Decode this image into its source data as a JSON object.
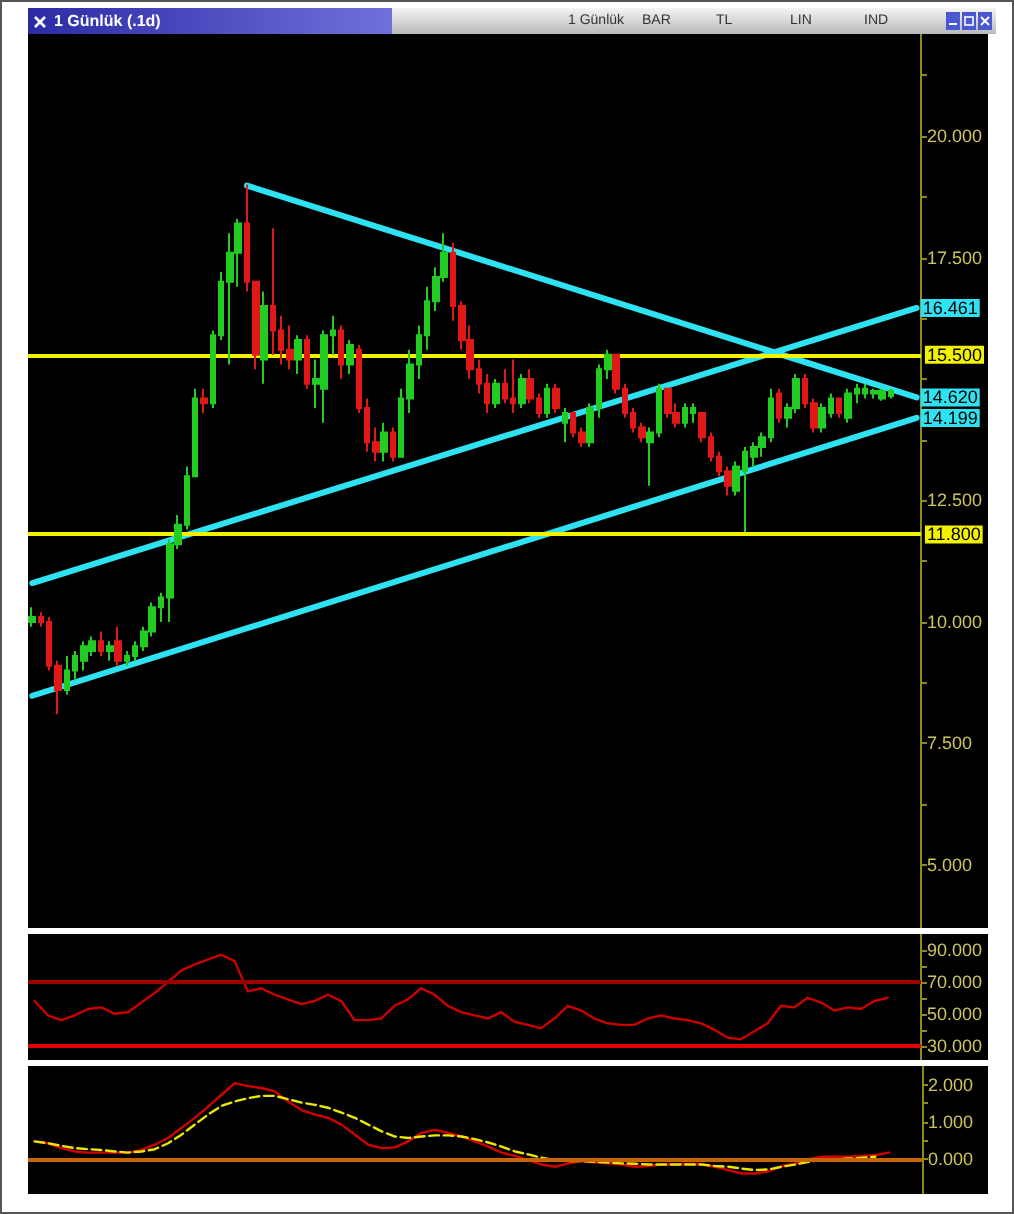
{
  "chart_data": [
    {
      "type": "candlestick",
      "title": "1 Günlük (.1d)",
      "annotations": [
        "1 Günlük",
        "BAR",
        "TL",
        "LIN",
        "IND"
      ],
      "categories": [
        null,
        null,
        null,
        null,
        null,
        null,
        null,
        null,
        null,
        null,
        null,
        null,
        null,
        null,
        null,
        null,
        null,
        null,
        null,
        null,
        null,
        null,
        null,
        null,
        null,
        null,
        null,
        null,
        null,
        null,
        null,
        null,
        null,
        null,
        null,
        null,
        null,
        null,
        null,
        null,
        null,
        null,
        null,
        null,
        null,
        null,
        null,
        null,
        null,
        null,
        null,
        null,
        null,
        null,
        null,
        null,
        null,
        null,
        null,
        null,
        null,
        null,
        null,
        null,
        null,
        null,
        null,
        null,
        null,
        null,
        null,
        null,
        null,
        null,
        null,
        null,
        null,
        null,
        null,
        null,
        null,
        null,
        null,
        null,
        null,
        null,
        null,
        null,
        null,
        null,
        null,
        null,
        null,
        null,
        null,
        null,
        null,
        null,
        null,
        null,
        null,
        null,
        null,
        null
      ],
      "ohlc": [
        [
          10.0,
          10.3,
          9.9,
          10.1
        ],
        [
          10.1,
          10.2,
          9.9,
          10.0
        ],
        [
          10.0,
          10.1,
          9.0,
          9.1
        ],
        [
          9.1,
          9.2,
          8.1,
          8.6
        ],
        [
          8.6,
          9.3,
          8.5,
          9.0
        ],
        [
          9.0,
          9.4,
          8.8,
          9.3
        ],
        [
          9.2,
          9.6,
          9.0,
          9.5
        ],
        [
          9.4,
          9.7,
          9.3,
          9.6
        ],
        [
          9.6,
          9.8,
          9.3,
          9.4
        ],
        [
          9.4,
          9.6,
          9.2,
          9.5
        ],
        [
          9.6,
          9.9,
          9.1,
          9.2
        ],
        [
          9.2,
          9.4,
          9.1,
          9.3
        ],
        [
          9.3,
          9.6,
          9.2,
          9.5
        ],
        [
          9.5,
          9.9,
          9.4,
          9.8
        ],
        [
          9.8,
          10.4,
          9.7,
          10.3
        ],
        [
          10.3,
          10.6,
          10.0,
          10.5
        ],
        [
          10.5,
          11.7,
          10.0,
          11.6
        ],
        [
          11.6,
          12.2,
          11.5,
          12.0
        ],
        [
          12.0,
          13.2,
          11.9,
          13.0
        ],
        [
          13.0,
          14.8,
          13.0,
          14.6
        ],
        [
          14.6,
          14.8,
          14.3,
          14.5
        ],
        [
          14.5,
          16.0,
          14.4,
          15.9
        ],
        [
          15.9,
          17.2,
          15.8,
          17.0
        ],
        [
          17.0,
          18.0,
          15.3,
          17.6
        ],
        [
          17.6,
          18.3,
          16.9,
          18.2
        ],
        [
          18.2,
          19.0,
          16.8,
          17.0
        ],
        [
          17.0,
          17.0,
          15.2,
          15.5
        ],
        [
          15.4,
          16.8,
          14.9,
          16.5
        ],
        [
          16.5,
          18.1,
          15.5,
          16.0
        ],
        [
          16.0,
          16.3,
          15.3,
          15.6
        ],
        [
          15.6,
          16.1,
          15.2,
          15.4
        ],
        [
          15.4,
          15.9,
          15.1,
          15.8
        ],
        [
          15.8,
          15.9,
          14.8,
          14.9
        ],
        [
          14.9,
          15.4,
          14.4,
          15.0
        ],
        [
          14.8,
          16.0,
          14.1,
          15.9
        ],
        [
          15.9,
          16.3,
          15.5,
          16.0
        ],
        [
          16.0,
          16.1,
          15.0,
          15.3
        ],
        [
          15.3,
          15.8,
          15.1,
          15.7
        ],
        [
          15.6,
          15.7,
          14.3,
          14.4
        ],
        [
          14.4,
          14.6,
          13.5,
          13.7
        ],
        [
          13.7,
          14.0,
          13.3,
          13.5
        ],
        [
          13.5,
          14.1,
          13.3,
          13.9
        ],
        [
          13.9,
          14.0,
          13.3,
          13.4
        ],
        [
          13.4,
          14.8,
          13.4,
          14.6
        ],
        [
          14.6,
          15.6,
          14.3,
          15.3
        ],
        [
          15.3,
          16.1,
          15.0,
          15.9
        ],
        [
          15.9,
          16.9,
          15.6,
          16.6
        ],
        [
          16.6,
          17.3,
          16.4,
          17.1
        ],
        [
          17.1,
          18.0,
          17.0,
          17.6
        ],
        [
          17.6,
          17.8,
          16.2,
          16.5
        ],
        [
          16.5,
          16.6,
          15.6,
          15.8
        ],
        [
          15.8,
          16.1,
          15.0,
          15.2
        ],
        [
          15.2,
          15.4,
          14.7,
          14.9
        ],
        [
          14.9,
          15.1,
          14.3,
          14.5
        ],
        [
          14.5,
          15.0,
          14.4,
          14.9
        ],
        [
          14.9,
          15.2,
          14.5,
          14.6
        ],
        [
          14.6,
          15.4,
          14.3,
          14.5
        ],
        [
          14.5,
          15.1,
          14.4,
          15.0
        ],
        [
          15.0,
          15.2,
          14.5,
          14.6
        ],
        [
          14.6,
          14.7,
          14.2,
          14.3
        ],
        [
          14.3,
          14.9,
          14.2,
          14.8
        ],
        [
          14.8,
          14.9,
          14.3,
          14.4
        ],
        [
          14.1,
          14.4,
          13.7,
          14.3
        ],
        [
          14.3,
          14.3,
          13.8,
          13.9
        ],
        [
          13.9,
          14.0,
          13.6,
          13.7
        ],
        [
          13.7,
          14.5,
          13.6,
          14.4
        ],
        [
          14.4,
          15.3,
          14.2,
          15.2
        ],
        [
          15.2,
          15.6,
          15.0,
          15.5
        ],
        [
          15.5,
          15.5,
          14.7,
          14.8
        ],
        [
          14.8,
          14.9,
          14.2,
          14.3
        ],
        [
          14.3,
          14.4,
          13.9,
          14.0
        ],
        [
          14.0,
          14.1,
          13.7,
          13.8
        ],
        [
          13.7,
          14.0,
          12.8,
          13.9
        ],
        [
          13.9,
          14.9,
          13.8,
          14.8
        ],
        [
          14.8,
          14.8,
          14.2,
          14.3
        ],
        [
          14.3,
          14.5,
          14.0,
          14.1
        ],
        [
          14.1,
          14.5,
          14.0,
          14.4
        ],
        [
          14.3,
          14.5,
          14.1,
          14.4
        ],
        [
          14.3,
          14.3,
          13.7,
          13.8
        ],
        [
          13.8,
          13.9,
          13.3,
          13.4
        ],
        [
          13.4,
          13.5,
          13.0,
          13.1
        ],
        [
          13.1,
          13.2,
          12.6,
          12.8
        ],
        [
          12.7,
          13.3,
          12.6,
          13.2
        ],
        [
          13.1,
          13.6,
          11.85,
          13.5
        ],
        [
          13.4,
          13.7,
          13.2,
          13.6
        ],
        [
          13.6,
          13.9,
          13.4,
          13.8
        ],
        [
          13.8,
          14.8,
          13.7,
          14.6
        ],
        [
          14.7,
          14.8,
          14.1,
          14.2
        ],
        [
          14.2,
          14.5,
          14.0,
          14.4
        ],
        [
          14.4,
          15.1,
          14.3,
          15.0
        ],
        [
          15.0,
          15.1,
          14.4,
          14.5
        ],
        [
          14.5,
          14.6,
          13.9,
          14.0
        ],
        [
          14.0,
          14.5,
          13.9,
          14.4
        ],
        [
          14.3,
          14.7,
          14.2,
          14.6
        ],
        [
          14.6,
          14.6,
          14.2,
          14.3
        ],
        [
          14.2,
          14.8,
          14.1,
          14.7
        ],
        [
          14.7,
          14.9,
          14.5,
          14.8
        ],
        [
          14.7,
          14.9,
          14.6,
          14.8
        ],
        [
          14.7,
          14.8,
          14.6,
          14.75
        ],
        [
          14.6,
          14.8,
          14.55,
          14.75
        ],
        [
          14.65,
          14.8,
          14.6,
          14.75
        ],
        null,
        null,
        null
      ],
      "colors": [
        "#22cc22",
        "#e01818",
        "#e01818",
        "#e01818",
        "#22cc22",
        "#22cc22",
        "#22cc22",
        "#22cc22",
        "#e01818",
        "#22cc22",
        "#e01818",
        "#22cc22",
        "#22cc22",
        "#22cc22",
        "#22cc22",
        "#22cc22",
        "#22cc22",
        "#22cc22",
        "#22cc22",
        "#22cc22",
        "#e01818",
        "#22cc22",
        "#22cc22",
        "#22cc22",
        "#22cc22",
        "#e01818",
        "#e01818",
        "#22cc22",
        "#e01818",
        "#e01818",
        "#e01818",
        "#22cc22",
        "#e01818",
        "#22cc22",
        "#22cc22",
        "#22cc22",
        "#e01818",
        "#22cc22",
        "#e01818",
        "#e01818",
        "#e01818",
        "#22cc22",
        "#e01818",
        "#22cc22",
        "#22cc22",
        "#22cc22",
        "#22cc22",
        "#22cc22",
        "#22cc22",
        "#e01818",
        "#e01818",
        "#e01818",
        "#e01818",
        "#e01818",
        "#22cc22",
        "#e01818",
        "#e01818",
        "#22cc22",
        "#e01818",
        "#e01818",
        "#22cc22",
        "#e01818",
        "#22cc22",
        "#e01818",
        "#e01818",
        "#22cc22",
        "#22cc22",
        "#22cc22",
        "#e01818",
        "#e01818",
        "#e01818",
        "#e01818",
        "#22cc22",
        "#22cc22",
        "#e01818",
        "#e01818",
        "#22cc22",
        "#22cc22",
        "#e01818",
        "#e01818",
        "#e01818",
        "#e01818",
        "#22cc22",
        "#22cc22",
        "#22cc22",
        "#22cc22",
        "#22cc22",
        "#e01818",
        "#22cc22",
        "#22cc22",
        "#e01818",
        "#e01818",
        "#22cc22",
        "#22cc22",
        "#e01818",
        "#22cc22",
        "#22cc22",
        "#22cc22",
        "#22cc22",
        "#22cc22",
        "#22cc22",
        null,
        null,
        null
      ],
      "series": [
        {
          "type": "line",
          "color": "#2fe2f2",
          "values": [
            null,
            null,
            null,
            null,
            null,
            null,
            null,
            null,
            null,
            null,
            null,
            null,
            null,
            null,
            null,
            null,
            null,
            null,
            null,
            null,
            null,
            null,
            null,
            null,
            null,
            18.98,
            null,
            null,
            null,
            null,
            null,
            null,
            null,
            null,
            null,
            null,
            null,
            null,
            null,
            null,
            null,
            null,
            null,
            null,
            null,
            null,
            null,
            null,
            null,
            null,
            null,
            null,
            null,
            null,
            null,
            null,
            null,
            null,
            null,
            null,
            null,
            null,
            null,
            null,
            null,
            null,
            null,
            null,
            null,
            null,
            null,
            null,
            null,
            null,
            null,
            null,
            null,
            null,
            null,
            null,
            null,
            null,
            null,
            null,
            null,
            null,
            null,
            null,
            null,
            null,
            null,
            null,
            null,
            null,
            null,
            null,
            null,
            null,
            null,
            null,
            null,
            null,
            null,
            14.62
          ],
          "value_labels": [
            null,
            null,
            null,
            null,
            null,
            null,
            null,
            null,
            null,
            null,
            null,
            null,
            null,
            null,
            null,
            null,
            null,
            null,
            null,
            null,
            null,
            null,
            null,
            null,
            null,
            null,
            null,
            null,
            null,
            null,
            null,
            null,
            null,
            null,
            null,
            null,
            null,
            null,
            null,
            null,
            null,
            null,
            null,
            null,
            null,
            null,
            null,
            null,
            null,
            null,
            null,
            null,
            null,
            null,
            null,
            null,
            null,
            null,
            null,
            null,
            null,
            null,
            null,
            null,
            null,
            null,
            null,
            null,
            null,
            null,
            null,
            null,
            null,
            null,
            null,
            null,
            null,
            null,
            null,
            null,
            null,
            null,
            null,
            null,
            null,
            null,
            null,
            null,
            null,
            null,
            null,
            null,
            null,
            null,
            null,
            null,
            null,
            null,
            null,
            null,
            null,
            null,
            null,
            "14.620"
          ]
        },
        {
          "type": "line",
          "color": "#2fe2f2",
          "values": [
            10.8,
            null,
            null,
            null,
            null,
            null,
            null,
            null,
            null,
            null,
            null,
            null,
            null,
            null,
            null,
            null,
            null,
            null,
            null,
            null,
            null,
            null,
            null,
            null,
            null,
            null,
            null,
            null,
            null,
            null,
            null,
            null,
            null,
            null,
            null,
            null,
            null,
            null,
            null,
            null,
            null,
            null,
            null,
            null,
            null,
            null,
            null,
            null,
            null,
            null,
            null,
            null,
            null,
            null,
            null,
            null,
            null,
            null,
            null,
            null,
            null,
            null,
            null,
            null,
            null,
            null,
            null,
            null,
            null,
            null,
            null,
            null,
            null,
            null,
            null,
            null,
            null,
            null,
            null,
            null,
            null,
            null,
            null,
            null,
            null,
            null,
            null,
            null,
            null,
            null,
            null,
            null,
            null,
            null,
            null,
            null,
            null,
            null,
            null,
            null,
            null,
            null,
            null,
            16.461
          ],
          "value_labels": [
            null,
            null,
            null,
            null,
            null,
            null,
            null,
            null,
            null,
            null,
            null,
            null,
            null,
            null,
            null,
            null,
            null,
            null,
            null,
            null,
            null,
            null,
            null,
            null,
            null,
            null,
            null,
            null,
            null,
            null,
            null,
            null,
            null,
            null,
            null,
            null,
            null,
            null,
            null,
            null,
            null,
            null,
            null,
            null,
            null,
            null,
            null,
            null,
            null,
            null,
            null,
            null,
            null,
            null,
            null,
            null,
            null,
            null,
            null,
            null,
            null,
            null,
            null,
            null,
            null,
            null,
            null,
            null,
            null,
            null,
            null,
            null,
            null,
            null,
            null,
            null,
            null,
            null,
            null,
            null,
            null,
            null,
            null,
            null,
            null,
            null,
            null,
            null,
            null,
            null,
            null,
            null,
            null,
            null,
            null,
            null,
            null,
            null,
            null,
            null,
            null,
            null,
            null,
            "16.461"
          ]
        },
        {
          "type": "line",
          "color": "#2fe2f2",
          "values": [
            8.48,
            null,
            null,
            null,
            null,
            null,
            null,
            null,
            null,
            null,
            null,
            null,
            null,
            null,
            null,
            null,
            null,
            null,
            null,
            null,
            null,
            null,
            null,
            null,
            null,
            null,
            null,
            null,
            null,
            null,
            null,
            null,
            null,
            null,
            null,
            null,
            null,
            null,
            null,
            null,
            null,
            null,
            null,
            null,
            null,
            null,
            null,
            null,
            null,
            null,
            null,
            null,
            null,
            null,
            null,
            null,
            null,
            null,
            null,
            null,
            null,
            null,
            null,
            null,
            null,
            null,
            null,
            null,
            null,
            null,
            null,
            null,
            null,
            null,
            null,
            null,
            null,
            null,
            null,
            null,
            null,
            null,
            null,
            null,
            null,
            null,
            null,
            null,
            null,
            null,
            null,
            null,
            null,
            null,
            null,
            null,
            null,
            null,
            null,
            null,
            null,
            null,
            null,
            14.199
          ],
          "value_labels": [
            null,
            null,
            null,
            null,
            null,
            null,
            null,
            null,
            null,
            null,
            null,
            null,
            null,
            null,
            null,
            null,
            null,
            null,
            null,
            null,
            null,
            null,
            null,
            null,
            null,
            null,
            null,
            null,
            null,
            null,
            null,
            null,
            null,
            null,
            null,
            null,
            null,
            null,
            null,
            null,
            null,
            null,
            null,
            null,
            null,
            null,
            null,
            null,
            null,
            null,
            null,
            null,
            null,
            null,
            null,
            null,
            null,
            null,
            null,
            null,
            null,
            null,
            null,
            null,
            null,
            null,
            null,
            null,
            null,
            null,
            null,
            null,
            null,
            null,
            null,
            null,
            null,
            null,
            null,
            null,
            null,
            null,
            null,
            null,
            null,
            null,
            null,
            null,
            null,
            null,
            null,
            null,
            null,
            null,
            null,
            null,
            null,
            null,
            null,
            null,
            null,
            null,
            null,
            "14.199"
          ]
        }
      ],
      "ref_lines": [
        {
          "axis": "y",
          "value": 15.5,
          "label": "15.500",
          "color": "#f2f200"
        },
        {
          "axis": "y",
          "value": 11.8,
          "label": "11.800",
          "color": "#f2f200"
        }
      ],
      "ylim": [
        3.7,
        22.1
      ],
      "yticks": [
        {
          "value": 5,
          "label": "5.000"
        },
        {
          "value": 6.25,
          "label": null
        },
        {
          "value": 7.5,
          "label": "7.500"
        },
        {
          "value": 8.75,
          "label": null
        },
        {
          "value": 10,
          "label": "10.000"
        },
        {
          "value": 11.25,
          "label": null
        },
        {
          "value": 12.5,
          "label": "12.500"
        },
        {
          "value": 13.75,
          "label": null
        },
        {
          "value": 15,
          "label": null
        },
        {
          "value": 16.25,
          "label": null
        },
        {
          "value": 17.5,
          "label": "17.500"
        },
        {
          "value": 18.75,
          "label": null
        },
        {
          "value": 20,
          "label": "20.000"
        },
        {
          "value": 21.25,
          "label": null
        }
      ],
      "marker": "none",
      "tick_labels": "y"
    },
    {
      "type": "line",
      "categories": [
        null,
        null,
        null,
        null,
        null,
        null,
        null,
        null,
        null,
        null,
        null,
        null,
        null,
        null,
        null,
        null,
        null,
        null,
        null,
        null,
        null,
        null,
        null,
        null,
        null,
        null,
        null,
        null,
        null,
        null,
        null,
        null,
        null,
        null,
        null,
        null,
        null,
        null,
        null,
        null,
        null,
        null,
        null,
        null,
        null,
        null,
        null,
        null,
        null,
        null,
        null,
        null,
        null,
        null,
        null,
        null,
        null,
        null,
        null,
        null,
        null,
        null,
        null,
        null,
        null,
        null,
        null
      ],
      "series": [
        {
          "color": "#cc0000",
          "values": [
            58,
            49,
            46,
            49,
            53,
            54,
            50,
            51,
            57,
            63,
            70,
            77,
            81,
            84,
            87,
            83,
            64,
            66,
            62,
            59,
            56,
            58,
            62,
            58,
            46,
            46,
            47,
            55,
            59,
            66,
            62,
            55,
            51,
            49,
            47,
            51,
            45,
            43,
            41,
            47,
            55,
            52,
            47,
            44,
            43,
            43,
            47,
            49,
            47,
            46,
            44,
            40,
            35,
            34,
            39,
            44,
            55,
            54,
            60,
            57,
            52,
            54,
            53,
            58,
            60,
            null,
            null
          ]
        }
      ],
      "ref_lines": [
        {
          "axis": "y",
          "value": 70,
          "color": "#9a0000"
        },
        {
          "axis": "y",
          "value": 30,
          "color": "#e00000"
        }
      ],
      "ylim": [
        21,
        100
      ],
      "yticks": [
        {
          "value": 30,
          "label": "30.000"
        },
        {
          "value": 40,
          "label": null
        },
        {
          "value": 50,
          "label": "50.000"
        },
        {
          "value": 60,
          "label": null
        },
        {
          "value": 70,
          "label": "70.000"
        },
        {
          "value": 80,
          "label": null
        },
        {
          "value": 90,
          "label": "90.000"
        }
      ],
      "marker": "none",
      "tick_labels": "y"
    },
    {
      "type": "line",
      "categories": [
        null,
        null,
        null,
        null,
        null,
        null,
        null,
        null,
        null,
        null,
        null,
        null,
        null,
        null,
        null,
        null,
        null,
        null,
        null,
        null,
        null,
        null,
        null,
        null,
        null,
        null,
        null,
        null,
        null,
        null,
        null,
        null,
        null,
        null,
        null,
        null,
        null,
        null,
        null,
        null,
        null,
        null,
        null,
        null,
        null,
        null,
        null,
        null,
        null,
        null,
        null,
        null,
        null,
        null,
        null,
        null,
        null,
        null,
        null,
        null,
        null,
        null,
        null,
        null,
        null,
        null,
        null
      ],
      "series": [
        {
          "color": "#d40000",
          "values": [
            0.48,
            0.43,
            0.3,
            0.21,
            0.18,
            0.18,
            0.18,
            0.18,
            0.25,
            0.39,
            0.57,
            0.84,
            1.11,
            1.41,
            1.73,
            2.04,
            1.96,
            1.91,
            1.82,
            1.55,
            1.32,
            1.2,
            1.11,
            0.93,
            0.66,
            0.39,
            0.3,
            0.32,
            0.48,
            0.71,
            0.79,
            0.71,
            0.61,
            0.48,
            0.34,
            0.18,
            0.09,
            -0.02,
            -0.14,
            -0.2,
            -0.11,
            -0.05,
            -0.09,
            -0.11,
            -0.14,
            -0.2,
            -0.18,
            -0.14,
            -0.14,
            -0.12,
            -0.14,
            -0.2,
            -0.29,
            -0.38,
            -0.38,
            -0.32,
            -0.18,
            -0.11,
            0.0,
            0.07,
            0.07,
            0.07,
            0.09,
            0.11,
            0.18,
            null,
            null
          ]
        },
        {
          "color": "#e8e800",
          "line_style": "dashed",
          "values": [
            0.48,
            0.43,
            0.36,
            0.3,
            0.27,
            0.25,
            0.21,
            0.18,
            0.21,
            0.27,
            0.43,
            0.66,
            0.93,
            1.2,
            1.43,
            1.55,
            1.64,
            1.7,
            1.7,
            1.61,
            1.52,
            1.46,
            1.38,
            1.25,
            1.11,
            0.93,
            0.75,
            0.61,
            0.57,
            0.61,
            0.64,
            0.64,
            0.61,
            0.54,
            0.45,
            0.34,
            0.21,
            0.13,
            0.04,
            -0.02,
            -0.05,
            -0.05,
            -0.07,
            -0.09,
            -0.11,
            -0.12,
            -0.14,
            -0.14,
            -0.14,
            -0.14,
            -0.14,
            -0.18,
            -0.2,
            -0.25,
            -0.29,
            -0.27,
            -0.2,
            -0.14,
            -0.07,
            -0.02,
            0.0,
            0.02,
            0.04,
            0.07,
            null,
            null,
            null
          ]
        }
      ],
      "ref_lines": [
        {
          "axis": "y",
          "value": 0,
          "color": "#c86400"
        }
      ],
      "ylim": [
        -0.93,
        2.5
      ],
      "yticks": [
        {
          "value": 0,
          "label": "0.000"
        },
        {
          "value": 0.5,
          "label": null
        },
        {
          "value": 1,
          "label": "1.000"
        },
        {
          "value": 1.5,
          "label": null
        },
        {
          "value": 2,
          "label": "2.000"
        }
      ],
      "marker": "none",
      "tick_labels": "y"
    }
  ]
}
